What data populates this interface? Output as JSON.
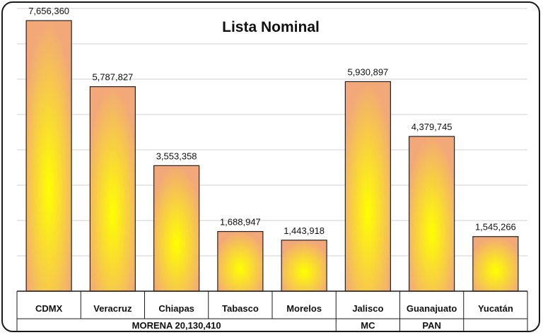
{
  "chart_data": {
    "type": "bar",
    "title": "Lista Nominal",
    "categories": [
      "CDMX",
      "Veracruz",
      "Chiapas",
      "Tabasco",
      "Morelos",
      "Jalisco",
      "Guanajuato",
      "Yucatán"
    ],
    "values": [
      7656360,
      5787827,
      3553358,
      1688947,
      1443918,
      5930897,
      4379745,
      1545266
    ],
    "value_labels": [
      "7,656,360",
      "5,787,827",
      "3,553,358",
      "1,688,947",
      "1,443,918",
      "5,930,897",
      "4,379,745",
      "1,545,266"
    ],
    "groups": [
      {
        "label": "MORENA  20,130,410",
        "members": [
          "CDMX",
          "Veracruz",
          "Chiapas",
          "Tabasco",
          "Morelos"
        ]
      },
      {
        "label": "MC",
        "members": [
          "Jalisco"
        ]
      },
      {
        "label": "PAN",
        "members": [
          "Guanajuato"
        ]
      },
      {
        "label": "",
        "members": [
          "Yucatán"
        ]
      }
    ],
    "ylim": [
      0,
      8000000
    ],
    "grid": true,
    "legend": "none",
    "colors": {
      "bar_center": "#ffff00",
      "bar_edge": "#f2a878",
      "bar_stroke": "#222222",
      "grid": "#d0d0d0"
    }
  }
}
